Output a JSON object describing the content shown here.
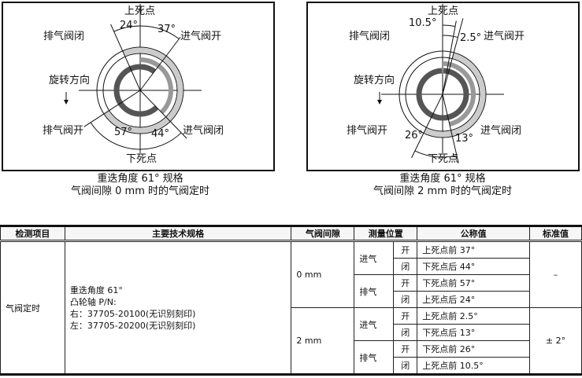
{
  "diagrams": [
    {
      "labels": {
        "tdc": "上死点",
        "bdc": "下死点",
        "ex_close": "排气阀闭",
        "in_open": "进气阀开",
        "rotation": "旋转方向",
        "ex_open": "排气阀开",
        "in_close": "进气阀闭",
        "a1": "24°",
        "a2": "37°",
        "a3": "57°",
        "a4": "44°"
      },
      "caption1": "重迭角度 61° 规格",
      "caption2": "气阀间隙 0 mm 时的气阀定时"
    },
    {
      "labels": {
        "tdc": "上死点",
        "bdc": "下死点",
        "ex_close": "排气阀闭",
        "in_open": "进气阀开",
        "rotation": "旋转方向",
        "ex_open": "排气阀开",
        "in_close": "进气阀闭",
        "a1": "10.5°",
        "a2": "2.5°",
        "a3": "26°",
        "a4": "13°"
      },
      "caption1": "重迭角度 61° 规格",
      "caption2": "气阀间隙 2 mm 时的气阀定时"
    }
  ],
  "table": {
    "headers": [
      "检测项目",
      "主要技术规格",
      "气阀间隙",
      "测量位置",
      "公称值",
      "标准值"
    ],
    "item": "气阀定时",
    "spec": [
      "重迭角度 61°",
      "凸轮轴 P/N:",
      "右：37705-20100(无识别刻印)",
      "左：37705-20200(无识别刻印)"
    ],
    "groups": [
      {
        "clearance": "0 mm",
        "standard": "–",
        "rows": [
          {
            "side": "进气",
            "pos": "开",
            "value": "上死点前 37°"
          },
          {
            "side": "进气",
            "pos": "闭",
            "value": "下死点后 44°"
          },
          {
            "side": "排气",
            "pos": "开",
            "value": "下死点前 57°"
          },
          {
            "side": "排气",
            "pos": "闭",
            "value": "上死点后 24°"
          }
        ]
      },
      {
        "clearance": "2 mm",
        "standard": "± 2°",
        "rows": [
          {
            "side": "进气",
            "pos": "开",
            "value": "上死点前 2.5°"
          },
          {
            "side": "进气",
            "pos": "闭",
            "value": "下死点后 13°"
          },
          {
            "side": "排气",
            "pos": "开",
            "value": "下死点前 26°"
          },
          {
            "side": "排气",
            "pos": "闭",
            "value": "上死点前 10.5°"
          }
        ]
      }
    ]
  }
}
